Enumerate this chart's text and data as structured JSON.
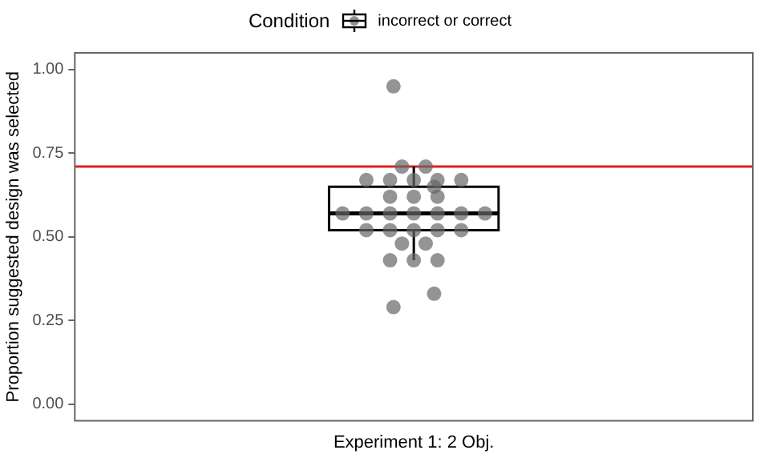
{
  "chart_data": {
    "type": "box",
    "categories": [
      "Experiment 1: 2 Obj."
    ],
    "ylabel": "Proportion suggested design was selected",
    "legend_title": "Condition",
    "legend": "top",
    "ylim": [
      -0.05,
      1.05
    ],
    "yticks": [
      {
        "value": 0,
        "label": "0.00"
      },
      {
        "value": 0.25,
        "label": "0.25"
      },
      {
        "value": 0.5,
        "label": "0.50"
      },
      {
        "value": 0.75,
        "label": "0.75"
      },
      {
        "value": 1,
        "label": "1.00"
      }
    ],
    "grid": false,
    "series": [
      {
        "type": "box",
        "name": "incorrect or correct",
        "color": "#000000",
        "boxes": [
          {
            "low": 0.43,
            "q1": 0.52,
            "median": 0.57,
            "q3": 0.65,
            "high": 0.71
          }
        ]
      },
      {
        "type": "scatter",
        "color": "#666666",
        "marker": "circle",
        "x": [
          "Experiment 1: 2 Obj.",
          "Experiment 1: 2 Obj.",
          "Experiment 1: 2 Obj.",
          "Experiment 1: 2 Obj.",
          "Experiment 1: 2 Obj.",
          "Experiment 1: 2 Obj.",
          "Experiment 1: 2 Obj.",
          "Experiment 1: 2 Obj.",
          "Experiment 1: 2 Obj.",
          "Experiment 1: 2 Obj.",
          "Experiment 1: 2 Obj.",
          "Experiment 1: 2 Obj.",
          "Experiment 1: 2 Obj.",
          "Experiment 1: 2 Obj.",
          "Experiment 1: 2 Obj.",
          "Experiment 1: 2 Obj.",
          "Experiment 1: 2 Obj.",
          "Experiment 1: 2 Obj.",
          "Experiment 1: 2 Obj.",
          "Experiment 1: 2 Obj.",
          "Experiment 1: 2 Obj.",
          "Experiment 1: 2 Obj.",
          "Experiment 1: 2 Obj.",
          "Experiment 1: 2 Obj.",
          "Experiment 1: 2 Obj.",
          "Experiment 1: 2 Obj.",
          "Experiment 1: 2 Obj.",
          "Experiment 1: 2 Obj.",
          "Experiment 1: 2 Obj.",
          "Experiment 1: 2 Obj.",
          "Experiment 1: 2 Obj."
        ],
        "values": [
          0.95,
          0.71,
          0.71,
          0.67,
          0.67,
          0.67,
          0.67,
          0.67,
          0.65,
          0.62,
          0.62,
          0.62,
          0.57,
          0.57,
          0.57,
          0.57,
          0.57,
          0.57,
          0.57,
          0.52,
          0.52,
          0.52,
          0.52,
          0.52,
          0.48,
          0.48,
          0.43,
          0.43,
          0.43,
          0.33,
          0.29
        ]
      }
    ],
    "ref_lines": [
      {
        "axis": "y",
        "value": 0.71,
        "color": "#e02020"
      }
    ]
  }
}
